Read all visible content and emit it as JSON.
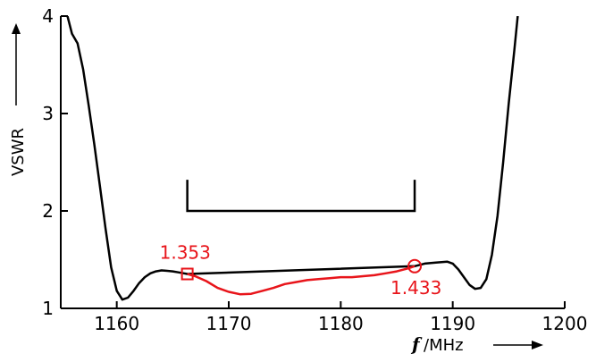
{
  "chart_data": {
    "type": "line",
    "title": "",
    "xlabel_var": "f",
    "xlabel_unit": "/MHz",
    "ylabel": "VSWR",
    "xlim": [
      1155,
      1200
    ],
    "ylim": [
      1,
      4
    ],
    "x_ticks": [
      1160,
      1170,
      1180,
      1190,
      1200
    ],
    "y_ticks": [
      1,
      2,
      3,
      4
    ],
    "grid": false,
    "colors": {
      "full_curve": "#000000",
      "band_curve": "#e8141a",
      "annotation": "#e8141a",
      "axis": "#000000"
    },
    "series": [
      {
        "role": "full-response",
        "color": "#000000",
        "points": [
          [
            1155.6,
            4.0
          ],
          [
            1156.0,
            3.82
          ],
          [
            1156.5,
            3.72
          ],
          [
            1157.0,
            3.45
          ],
          [
            1157.5,
            3.08
          ],
          [
            1158.0,
            2.68
          ],
          [
            1158.5,
            2.25
          ],
          [
            1159.0,
            1.82
          ],
          [
            1159.5,
            1.42
          ],
          [
            1160.0,
            1.18
          ],
          [
            1160.5,
            1.09
          ],
          [
            1161.0,
            1.11
          ],
          [
            1161.5,
            1.18
          ],
          [
            1162.0,
            1.26
          ],
          [
            1162.5,
            1.32
          ],
          [
            1163.0,
            1.36
          ],
          [
            1163.5,
            1.38
          ],
          [
            1164.0,
            1.39
          ],
          [
            1164.5,
            1.385
          ],
          [
            1165.0,
            1.38
          ],
          [
            1165.5,
            1.37
          ],
          [
            1166.0,
            1.36
          ],
          [
            1166.3,
            1.353
          ],
          [
            1186.6,
            1.433
          ],
          [
            1187.5,
            1.46
          ],
          [
            1188.5,
            1.47
          ],
          [
            1189.5,
            1.48
          ],
          [
            1190.0,
            1.46
          ],
          [
            1190.5,
            1.4
          ],
          [
            1191.0,
            1.32
          ],
          [
            1191.5,
            1.24
          ],
          [
            1192.0,
            1.2
          ],
          [
            1192.5,
            1.21
          ],
          [
            1193.0,
            1.3
          ],
          [
            1193.5,
            1.55
          ],
          [
            1194.0,
            1.95
          ],
          [
            1194.5,
            2.5
          ],
          [
            1195.0,
            3.1
          ],
          [
            1195.5,
            3.65
          ],
          [
            1195.8,
            4.0
          ]
        ]
      },
      {
        "role": "operating-band",
        "color": "#e8141a",
        "points": [
          [
            1166.3,
            1.353
          ],
          [
            1167.0,
            1.33
          ],
          [
            1168.0,
            1.28
          ],
          [
            1169.0,
            1.21
          ],
          [
            1170.0,
            1.17
          ],
          [
            1171.0,
            1.145
          ],
          [
            1172.0,
            1.15
          ],
          [
            1173.0,
            1.18
          ],
          [
            1174.0,
            1.21
          ],
          [
            1175.0,
            1.25
          ],
          [
            1176.0,
            1.27
          ],
          [
            1177.0,
            1.29
          ],
          [
            1178.0,
            1.3
          ],
          [
            1179.0,
            1.31
          ],
          [
            1180.0,
            1.32
          ],
          [
            1181.0,
            1.32
          ],
          [
            1182.0,
            1.33
          ],
          [
            1183.0,
            1.34
          ],
          [
            1184.0,
            1.36
          ],
          [
            1185.0,
            1.38
          ],
          [
            1186.0,
            1.41
          ],
          [
            1186.6,
            1.433
          ]
        ]
      }
    ],
    "band_bracket": {
      "x_start": 1166.3,
      "x_end": 1186.6,
      "y_level": 2.0,
      "y_top": 2.32
    },
    "annotations": [
      {
        "label": "1.353",
        "x": 1166.3,
        "y": 1.353,
        "marker": "square"
      },
      {
        "label": "1.433",
        "x": 1186.6,
        "y": 1.433,
        "marker": "circle"
      }
    ]
  }
}
